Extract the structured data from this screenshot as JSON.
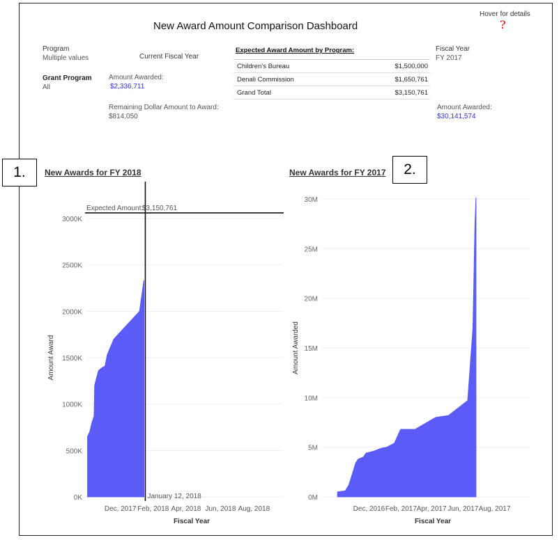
{
  "header": {
    "title": "New Award Amount Comparison Dashboard",
    "hover_text": "Hover for details",
    "help_glyph": "?"
  },
  "filters": {
    "program_label": "Program",
    "program_value": "Multiple values",
    "grant_program_label": "Grant Program",
    "grant_program_value": "All"
  },
  "current_fy": {
    "heading": "Current Fiscal Year",
    "amount_label": "Amount Awarded:",
    "amount_value": "$2,336,711",
    "remaining_label": "Remaining Dollar Amount to Award:",
    "remaining_value": "$814,050"
  },
  "expected_table": {
    "title": "Expected Award Amount by Program:",
    "rows": [
      {
        "program": "Children's Bureau",
        "amount": "$1,500,000"
      },
      {
        "program": "Denali Commission",
        "amount": "$1,650,761"
      },
      {
        "program": "Grand Total",
        "amount": "$3,150,761"
      }
    ]
  },
  "prior_fy": {
    "label": "Fiscal Year",
    "value": "FY 2017",
    "amount_label": "Amount Awarded:",
    "amount_value": "$30,141,574"
  },
  "badges": [
    "1.",
    "2."
  ],
  "colors": {
    "area": "#5b5bf7",
    "link": "#3030e0",
    "help": "#e00000"
  },
  "chart_data": [
    {
      "type": "area",
      "title": "New Awards for FY 2018",
      "xlabel": "Fiscal Year",
      "ylabel": "Amount Award",
      "ylim": [
        0,
        3150761
      ],
      "y_ticks": [
        0,
        500,
        1000,
        1500,
        2000,
        2500,
        3000
      ],
      "y_tick_labels": [
        "0K",
        "500K",
        "1000K",
        "1500K",
        "2000K",
        "2500K",
        "3000K"
      ],
      "x_tick_labels": [
        "Dec, 2017",
        "Feb, 2018",
        "Apr, 2018",
        "Jun, 2018",
        "Aug, 2018"
      ],
      "x_range_days": [
        -2,
        357
      ],
      "x_tick_days": [
        60,
        120,
        180,
        243,
        304
      ],
      "points_day_value_k": [
        [
          0,
          0
        ],
        [
          0,
          650
        ],
        [
          4,
          700
        ],
        [
          8,
          800
        ],
        [
          12,
          870
        ],
        [
          13,
          1200
        ],
        [
          15,
          1250
        ],
        [
          20,
          1360
        ],
        [
          26,
          1390
        ],
        [
          32,
          1410
        ],
        [
          36,
          1530
        ],
        [
          48,
          1700
        ],
        [
          95,
          2000
        ],
        [
          103,
          2336.711
        ],
        [
          103,
          0
        ]
      ],
      "reference_line": {
        "label": "Expected Amount:",
        "value_label": "$3,150,761",
        "value_k": 3150.761
      },
      "marker_line": {
        "label": "January 12, 2018",
        "day": 103
      }
    },
    {
      "type": "area",
      "title": "New Awards for FY 2017",
      "xlabel": "Fiscal Year",
      "ylabel": "Amount Awarded",
      "ylim": [
        0,
        30141574
      ],
      "y_ticks": [
        0,
        5,
        10,
        15,
        20,
        25,
        30
      ],
      "y_tick_labels": [
        "0M",
        "5M",
        "10M",
        "15M",
        "20M",
        "25M",
        "30M"
      ],
      "x_tick_labels": [
        "Dec, 2016",
        "Feb, 2017",
        "Apr, 2017",
        "Jun, 2017",
        "Aug, 2017"
      ],
      "x_range_days": [
        -30,
        372
      ],
      "x_tick_days": [
        61,
        123,
        182,
        243,
        304
      ],
      "points_day_value_m": [
        [
          0,
          0
        ],
        [
          0,
          0.5
        ],
        [
          15,
          0.6
        ],
        [
          22,
          1.2
        ],
        [
          28,
          2.2
        ],
        [
          35,
          3.4
        ],
        [
          40,
          3.8
        ],
        [
          50,
          4.0
        ],
        [
          55,
          4.4
        ],
        [
          70,
          4.6
        ],
        [
          85,
          4.9
        ],
        [
          95,
          5.0
        ],
        [
          110,
          5.4
        ],
        [
          122,
          6.8
        ],
        [
          150,
          6.8
        ],
        [
          190,
          8.0
        ],
        [
          215,
          8.2
        ],
        [
          252,
          9.7
        ],
        [
          262,
          17.0
        ],
        [
          266,
          27.5
        ],
        [
          268,
          30.14
        ],
        [
          268,
          0
        ]
      ]
    }
  ]
}
